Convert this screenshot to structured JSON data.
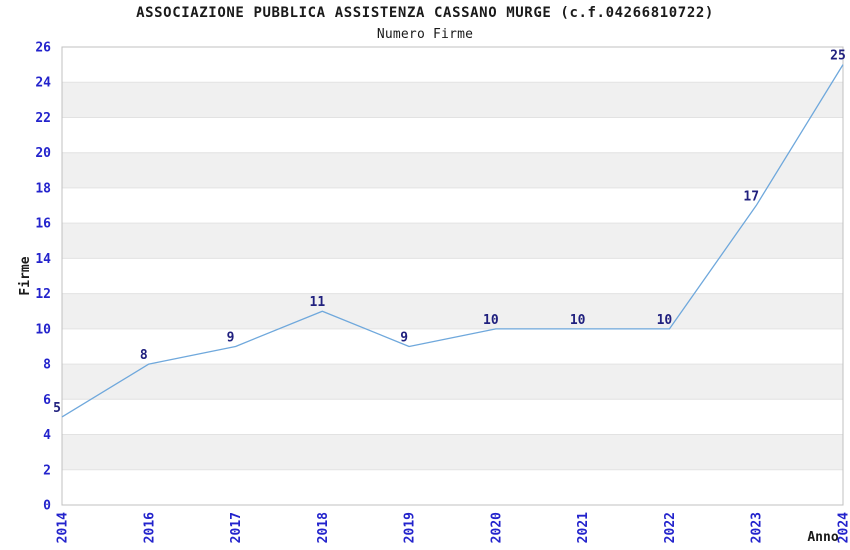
{
  "chart_data": {
    "type": "line",
    "title": "ASSOCIAZIONE PUBBLICA ASSISTENZA CASSANO MURGE (c.f.04266810722)",
    "subtitle": "Numero Firme",
    "xlabel": "Anno",
    "ylabel": "Firme",
    "categories": [
      "2014",
      "2016",
      "2017",
      "2018",
      "2019",
      "2020",
      "2021",
      "2022",
      "2023",
      "2024"
    ],
    "values": [
      5,
      8,
      9,
      11,
      9,
      10,
      10,
      10,
      17,
      25
    ],
    "point_labels": [
      "5",
      "8",
      "9",
      "11",
      "9",
      "10",
      "10",
      "10",
      "17",
      "25"
    ],
    "ylim": [
      0,
      26
    ],
    "ytick_step": 2,
    "grid": true,
    "legend_position": "none",
    "background_bands": "alternating",
    "colors": {
      "line": "#6FA8DC",
      "tick_label": "#2323CC",
      "point_label": "#20207E",
      "band": "#F0F0F0",
      "gridline": "#E2E2E2",
      "plot_border": "#C0C0C0",
      "text": "#1A1A1A",
      "background": "#FFFFFF"
    }
  }
}
